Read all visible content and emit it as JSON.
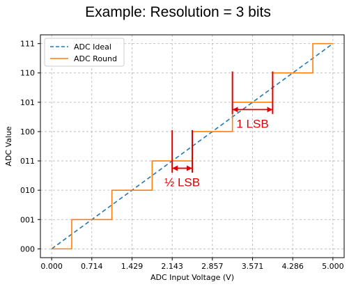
{
  "slide_title": "Example:  Resolution = 3 bits",
  "chart_data": {
    "type": "line",
    "xlabel": "ADC Input Voltage (V)",
    "ylabel": "ADC Value",
    "xlim": [
      -0.2,
      5.2
    ],
    "ylim": [
      -0.3,
      7.3
    ],
    "x_ticks": [
      0,
      0.714,
      1.429,
      2.143,
      2.857,
      3.571,
      4.286,
      5.0
    ],
    "x_tick_labels": [
      "0.000",
      "0.714",
      "1.429",
      "2.143",
      "2.857",
      "3.571",
      "4.286",
      "5.000"
    ],
    "y_ticks": [
      0,
      1,
      2,
      3,
      4,
      5,
      6,
      7
    ],
    "y_tick_labels": [
      "000",
      "001",
      "010",
      "011",
      "100",
      "101",
      "110",
      "111"
    ],
    "grid": true,
    "legend_position": "top-left",
    "series": [
      {
        "name": "ADC Ideal",
        "style": "dashed",
        "color": "#1f77b4",
        "x": [
          0,
          5.0
        ],
        "y": [
          0,
          7
        ]
      },
      {
        "name": "ADC Round",
        "style": "step",
        "color": "#ff7f0e",
        "x": [
          0,
          0.357,
          0.357,
          1.071,
          1.071,
          1.786,
          1.786,
          2.5,
          2.5,
          3.214,
          3.214,
          3.929,
          3.929,
          4.643,
          4.643,
          5.0
        ],
        "y": [
          0,
          0,
          1,
          1,
          2,
          2,
          3,
          3,
          4,
          4,
          5,
          5,
          6,
          6,
          7,
          7
        ]
      }
    ],
    "annotations": [
      {
        "label": "½ LSB",
        "x0": 2.143,
        "x1": 2.5,
        "arrow_y": 2.75,
        "bar_low": 2.6,
        "bar_high": 4.05,
        "color": "#e00000"
      },
      {
        "label": "1 LSB",
        "x0": 3.214,
        "x1": 3.929,
        "arrow_y": 4.75,
        "bar_low": 4.6,
        "bar_high": 6.05,
        "color": "#e00000"
      }
    ]
  }
}
